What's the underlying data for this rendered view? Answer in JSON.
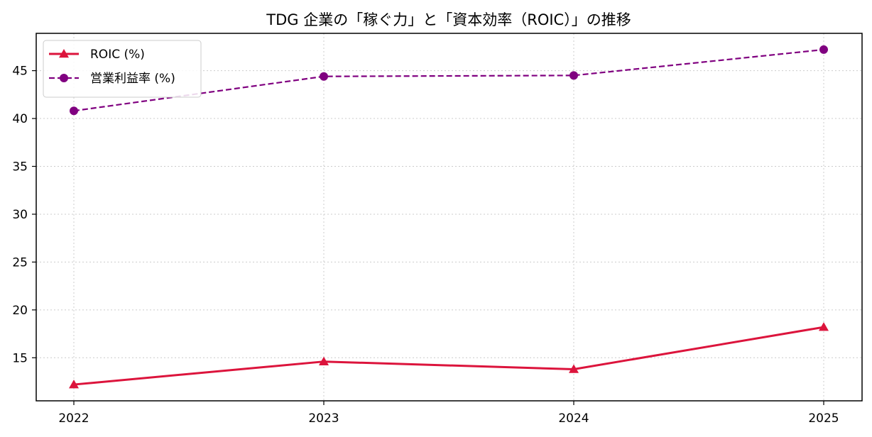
{
  "chart_data": {
    "type": "line",
    "title": "TDG 企業の「稼ぐ力」と「資本効率（ROIC）」の推移",
    "xlabel": "",
    "ylabel": "",
    "categories": [
      "2022",
      "2023",
      "2024",
      "2025"
    ],
    "yticks": [
      "15",
      "20",
      "25",
      "30",
      "35",
      "40",
      "45"
    ],
    "ylim": [
      10.5,
      48.9
    ],
    "grid": true,
    "legend_position": "upper-left",
    "series": [
      {
        "name": "ROIC (%)",
        "values": [
          12.2,
          14.6,
          13.8,
          18.2
        ],
        "color": "#dc143c",
        "marker": "triangle",
        "line_style": "solid"
      },
      {
        "name": "営業利益率 (%)",
        "values": [
          40.8,
          44.4,
          44.5,
          47.2
        ],
        "color": "#800080",
        "marker": "circle",
        "line_style": "dashed"
      }
    ]
  }
}
